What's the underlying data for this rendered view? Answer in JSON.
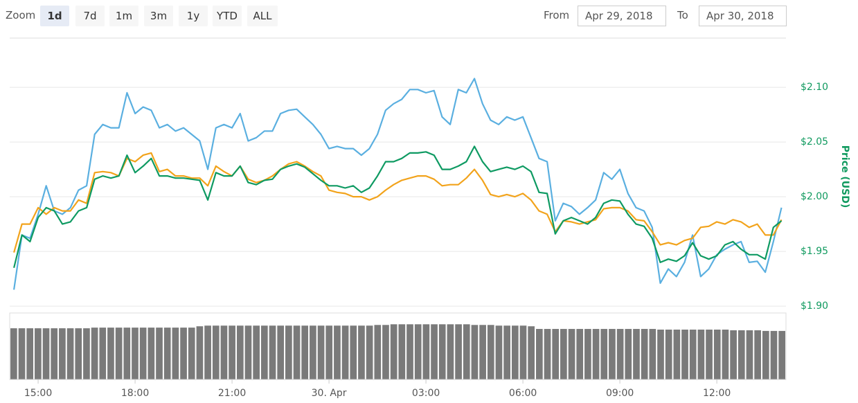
{
  "toolbar": {
    "zoom_label": "Zoom",
    "buttons": [
      "1d",
      "7d",
      "1m",
      "3m",
      "1y",
      "YTD",
      "ALL"
    ],
    "selected": 0,
    "from_label": "From",
    "from": "Apr 29, 2018",
    "to_label": "To",
    "to": "Apr 30, 2018"
  },
  "chart_data": {
    "type": "line",
    "y_axis_label": "Price (USD)",
    "axis_color": "#109a5f",
    "grid": true,
    "xlim": [
      14.12,
      38.14
    ],
    "ylim": [
      1.895,
      2.145
    ],
    "xticks": [
      {
        "value": 15,
        "label": "15:00"
      },
      {
        "value": 18,
        "label": "18:00"
      },
      {
        "value": 21,
        "label": "21:00"
      },
      {
        "value": 24,
        "label": "30. Apr"
      },
      {
        "value": 27,
        "label": "03:00"
      },
      {
        "value": 30,
        "label": "06:00"
      },
      {
        "value": 33,
        "label": "09:00"
      },
      {
        "value": 36,
        "label": "12:00"
      }
    ],
    "yticks": [
      {
        "value": 1.9,
        "label": "$1.90"
      },
      {
        "value": 1.95,
        "label": "$1.95"
      },
      {
        "value": 2.0,
        "label": "$2.00"
      },
      {
        "value": 2.05,
        "label": "$2.05"
      },
      {
        "value": 2.1,
        "label": "$2.10"
      }
    ],
    "x": [
      14.25,
      14.5,
      14.75,
      15,
      15.25,
      15.5,
      15.75,
      16,
      16.25,
      16.5,
      16.75,
      17,
      17.25,
      17.5,
      17.75,
      18,
      18.25,
      18.5,
      18.75,
      19,
      19.25,
      19.5,
      19.75,
      20,
      20.25,
      20.5,
      20.75,
      21,
      21.25,
      21.5,
      21.75,
      22,
      22.25,
      22.5,
      22.75,
      23,
      23.25,
      23.5,
      23.75,
      24,
      24.25,
      24.5,
      24.75,
      25,
      25.25,
      25.5,
      25.75,
      26,
      26.25,
      26.5,
      26.75,
      27,
      27.25,
      27.5,
      27.75,
      28,
      28.25,
      28.5,
      28.75,
      29,
      29.25,
      29.5,
      29.75,
      30,
      30.25,
      30.5,
      30.75,
      31,
      31.25,
      31.5,
      31.75,
      32,
      32.25,
      32.5,
      32.75,
      33,
      33.25,
      33.5,
      33.75,
      34,
      34.25,
      34.5,
      34.75,
      35,
      35.25,
      35.5,
      35.75,
      36,
      36.25,
      36.5,
      36.75,
      37,
      37.25,
      37.5,
      37.75,
      38
    ],
    "series": [
      {
        "color": "#5aafe0",
        "values": [
          1.915,
          1.965,
          1.962,
          1.984,
          2.01,
          1.987,
          1.984,
          1.99,
          2.006,
          2.01,
          2.057,
          2.066,
          2.063,
          2.063,
          2.095,
          2.076,
          2.082,
          2.079,
          2.063,
          2.066,
          2.06,
          2.063,
          2.057,
          2.051,
          2.025,
          2.063,
          2.066,
          2.063,
          2.076,
          2.051,
          2.054,
          2.06,
          2.06,
          2.076,
          2.079,
          2.08,
          2.073,
          2.066,
          2.057,
          2.044,
          2.046,
          2.044,
          2.044,
          2.038,
          2.044,
          2.057,
          2.079,
          2.085,
          2.089,
          2.098,
          2.098,
          2.095,
          2.097,
          2.073,
          2.066,
          2.098,
          2.095,
          2.108,
          2.085,
          2.07,
          2.066,
          2.073,
          2.07,
          2.073,
          2.054,
          2.035,
          2.032,
          1.978,
          1.994,
          1.991,
          1.984,
          1.99,
          1.997,
          2.022,
          2.016,
          2.025,
          2.003,
          1.99,
          1.987,
          1.972,
          1.921,
          1.934,
          1.927,
          1.94,
          1.965,
          1.927,
          1.934,
          1.947,
          1.952,
          1.956,
          1.959,
          1.94,
          1.941,
          1.931,
          1.959,
          1.99
        ]
      },
      {
        "color": "#f2a31b",
        "values": [
          1.949,
          1.975,
          1.975,
          1.99,
          1.984,
          1.99,
          1.987,
          1.987,
          1.997,
          1.994,
          2.022,
          2.023,
          2.022,
          2.019,
          2.035,
          2.032,
          2.038,
          2.04,
          2.023,
          2.025,
          2.019,
          2.019,
          2.017,
          2.017,
          2.01,
          2.028,
          2.023,
          2.019,
          2.028,
          2.016,
          2.013,
          2.015,
          2.019,
          2.025,
          2.03,
          2.032,
          2.028,
          2.023,
          2.019,
          2.006,
          2.004,
          2.003,
          2.0,
          2.0,
          1.997,
          2.0,
          2.006,
          2.011,
          2.015,
          2.017,
          2.019,
          2.019,
          2.016,
          2.01,
          2.011,
          2.011,
          2.017,
          2.025,
          2.015,
          2.002,
          2.0,
          2.002,
          2.0,
          2.003,
          1.997,
          1.987,
          1.984,
          1.968,
          1.978,
          1.977,
          1.975,
          1.977,
          1.979,
          1.989,
          1.99,
          1.99,
          1.987,
          1.979,
          1.978,
          1.968,
          1.956,
          1.958,
          1.956,
          1.96,
          1.962,
          1.972,
          1.973,
          1.977,
          1.975,
          1.979,
          1.977,
          1.972,
          1.975,
          1.965,
          1.965,
          1.979
        ]
      },
      {
        "color": "#0e9a62",
        "values": [
          1.935,
          1.965,
          1.959,
          1.981,
          1.99,
          1.987,
          1.975,
          1.977,
          1.987,
          1.99,
          2.016,
          2.019,
          2.017,
          2.019,
          2.038,
          2.022,
          2.028,
          2.035,
          2.019,
          2.019,
          2.017,
          2.017,
          2.016,
          2.015,
          1.997,
          2.022,
          2.019,
          2.019,
          2.028,
          2.013,
          2.011,
          2.015,
          2.016,
          2.025,
          2.028,
          2.03,
          2.027,
          2.021,
          2.015,
          2.01,
          2.01,
          2.008,
          2.01,
          2.004,
          2.008,
          2.019,
          2.032,
          2.032,
          2.035,
          2.04,
          2.04,
          2.041,
          2.038,
          2.025,
          2.025,
          2.028,
          2.032,
          2.046,
          2.032,
          2.023,
          2.025,
          2.027,
          2.025,
          2.028,
          2.023,
          2.004,
          2.003,
          1.966,
          1.978,
          1.981,
          1.978,
          1.975,
          1.981,
          1.994,
          1.997,
          1.996,
          1.984,
          1.975,
          1.973,
          1.962,
          1.94,
          1.943,
          1.941,
          1.946,
          1.958,
          1.946,
          1.943,
          1.946,
          1.956,
          1.959,
          1.952,
          1.947,
          1.947,
          1.943,
          1.972,
          1.978
        ]
      }
    ],
    "volume": {
      "color": "#7a7a7a",
      "ylim": [
        0,
        100
      ],
      "values": [
        77,
        77,
        77,
        77,
        77,
        77,
        77,
        77,
        77,
        77,
        78,
        78,
        78,
        78,
        78,
        78,
        78,
        78,
        78,
        78,
        78,
        78,
        78,
        80,
        81,
        81,
        81,
        81,
        81,
        81,
        81,
        81,
        81,
        81,
        81,
        81,
        81,
        81,
        81,
        81,
        81,
        81,
        81,
        81,
        81,
        82,
        82,
        83,
        83,
        83,
        83,
        83,
        83,
        83,
        83,
        83,
        83,
        82,
        82,
        82,
        81,
        81,
        81,
        81,
        80,
        76,
        76,
        76,
        76,
        76,
        76,
        76,
        76,
        76,
        76,
        76,
        76,
        76,
        76,
        76,
        75,
        75,
        75,
        75,
        75,
        75,
        75,
        75,
        75,
        74,
        74,
        74,
        74,
        73,
        73,
        73
      ]
    }
  }
}
